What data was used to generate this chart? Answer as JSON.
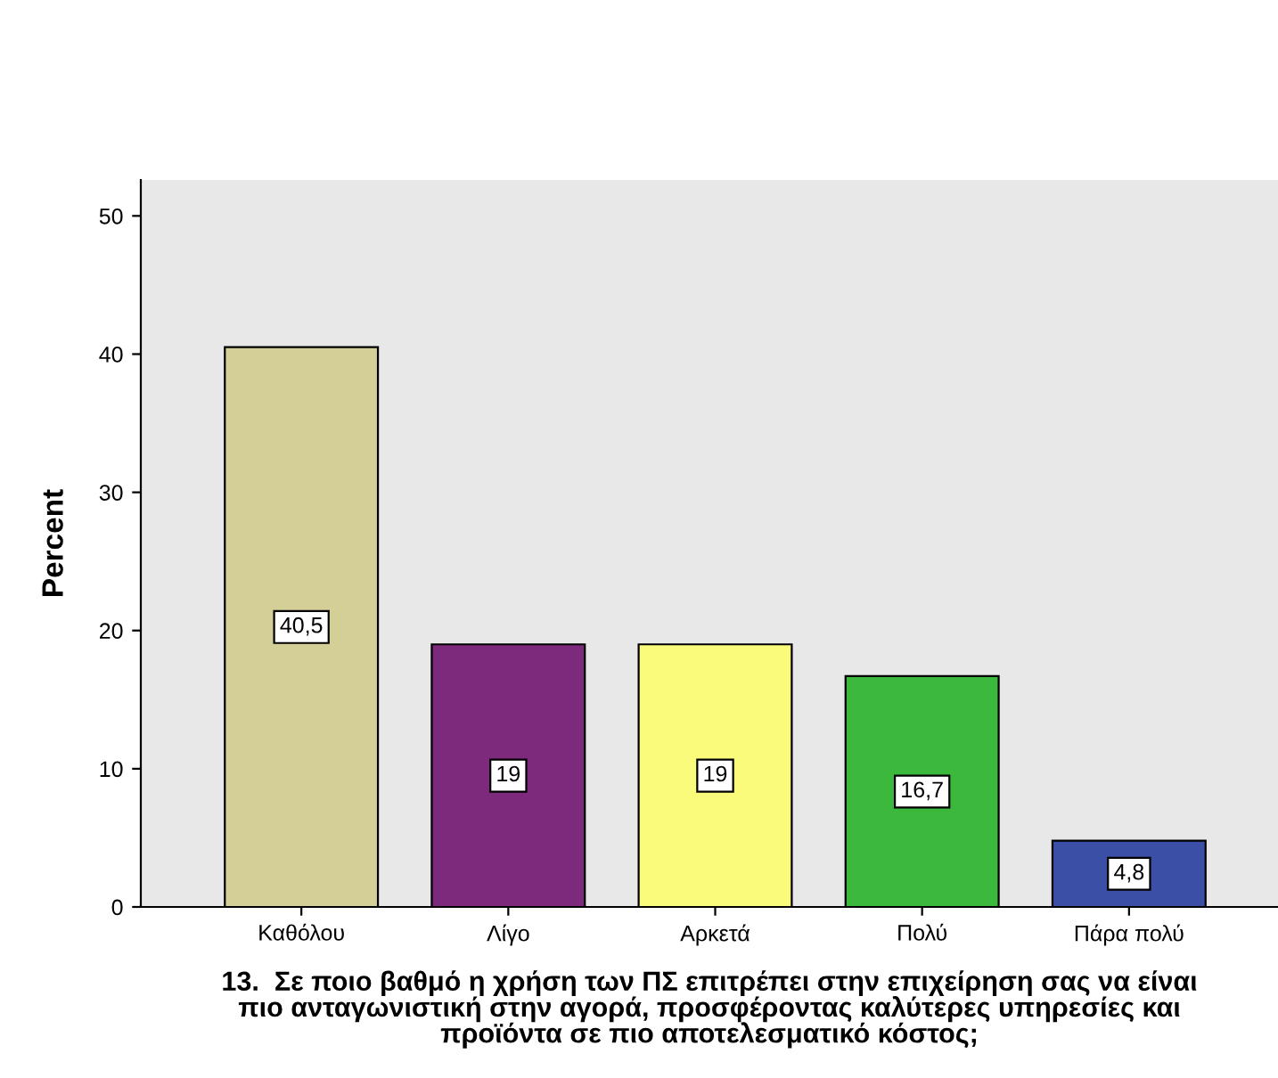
{
  "chart_data": {
    "type": "bar",
    "categories": [
      "Καθόλου",
      "Λίγο",
      "Αρκετά",
      "Πολύ",
      "Πάρα πολύ"
    ],
    "values": [
      40.5,
      19,
      19,
      16.7,
      4.8
    ],
    "value_labels": [
      "40,5",
      "19",
      "19",
      "16,7",
      "4,8"
    ],
    "colors": [
      "#d3cf96",
      "#7e2a7c",
      "#fbfb7b",
      "#3cb83d",
      "#3b4fa6"
    ],
    "ylabel": "Percent",
    "xlabel": "13.  Σε ποιο βαθμό η χρήση των ΠΣ επιτρέπει στην επιχείρηση σας να είναι\nπιο ανταγωνιστική στην αγορά, προσφέροντας καλύτερες υπηρεσίες και\nπροϊόντα σε πιο αποτελεσματικό κόστος;",
    "ylim": [
      0,
      52.6
    ],
    "yticks": [
      0,
      10,
      20,
      30,
      40,
      50
    ],
    "grid": false
  }
}
